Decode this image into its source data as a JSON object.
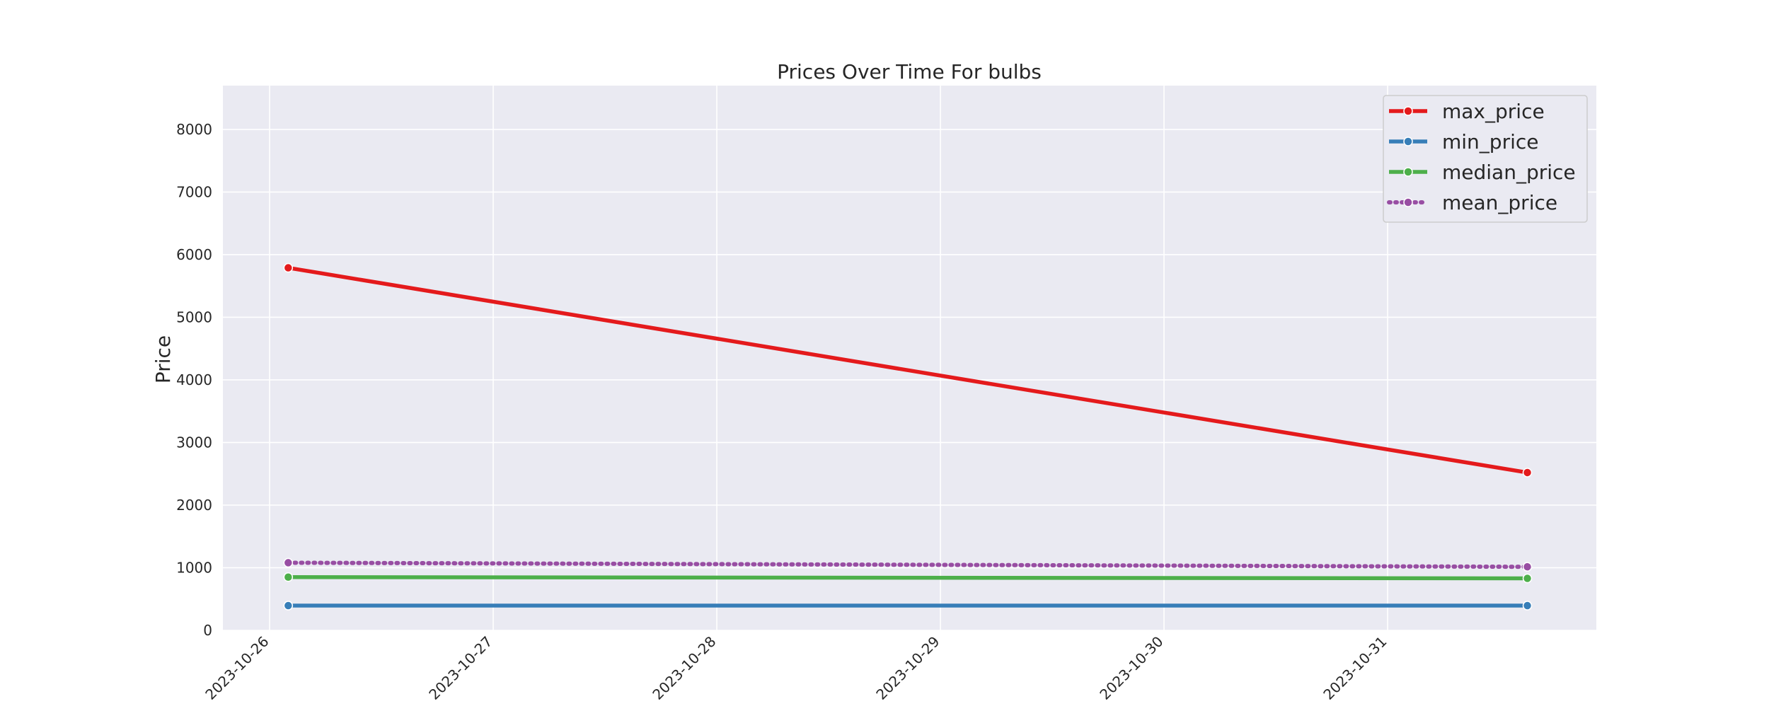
{
  "chart_data": {
    "type": "line",
    "title": "Prices Over Time For bulbs",
    "xlabel": "",
    "ylabel": "Price",
    "x": [
      "2023-10-26T02:00",
      "2023-10-31T15:00"
    ],
    "x_tick_labels": [
      "2023-10-26",
      "2023-10-27",
      "2023-10-28",
      "2023-10-29",
      "2023-10-30",
      "2023-10-31"
    ],
    "ylim": [
      0,
      8700
    ],
    "y_ticks": [
      0,
      1000,
      2000,
      3000,
      4000,
      5000,
      6000,
      7000,
      8000
    ],
    "grid": true,
    "legend_position": "top-right",
    "series": [
      {
        "name": "max_price",
        "values": [
          5790,
          2520
        ],
        "color": "#e41a1c",
        "style": "solid"
      },
      {
        "name": "min_price",
        "values": [
          395,
          395
        ],
        "color": "#377eb8",
        "style": "solid"
      },
      {
        "name": "median_price",
        "values": [
          850,
          830
        ],
        "color": "#4daf4a",
        "style": "solid"
      },
      {
        "name": "mean_price",
        "values": [
          1080,
          1015
        ],
        "color": "#984ea3",
        "style": "dotted"
      }
    ]
  }
}
